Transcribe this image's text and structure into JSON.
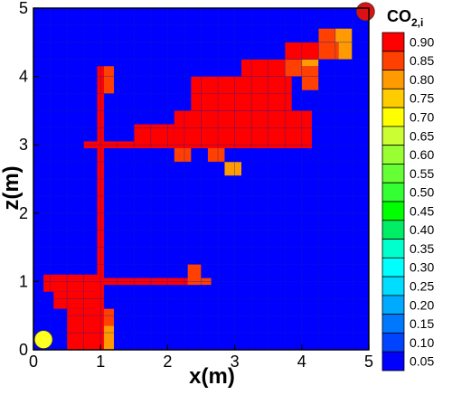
{
  "chart_data": {
    "type": "heatmap",
    "xlabel": "x(m)",
    "ylabel": "z(m)",
    "xlim": [
      0,
      5
    ],
    "ylim": [
      0,
      5
    ],
    "xticks": [
      "0",
      "1",
      "2",
      "3",
      "4",
      "5"
    ],
    "yticks": [
      "0",
      "1",
      "2",
      "3",
      "4",
      "5"
    ],
    "cell_size": 0.25,
    "background_value": 0.05,
    "grid": true,
    "legend": {
      "title_main": "CO",
      "title_sub": "2,i",
      "placement": "right",
      "levels": [
        "0.90",
        "0.85",
        "0.80",
        "0.75",
        "0.70",
        "0.65",
        "0.60",
        "0.55",
        "0.50",
        "0.45",
        "0.40",
        "0.35",
        "0.30",
        "0.25",
        "0.20",
        "0.15",
        "0.10",
        "0.05"
      ],
      "colors": [
        "#ff0000",
        "#ff4000",
        "#ff9a00",
        "#ffcc00",
        "#ffff00",
        "#ccff33",
        "#99ff33",
        "#66ff33",
        "#33ff33",
        "#00ff00",
        "#00ee66",
        "#00ffcc",
        "#00ffff",
        "#00ddff",
        "#00aaff",
        "#0077ff",
        "#0044ff",
        "#0000ff"
      ]
    },
    "cells": [
      {
        "x": 0.15,
        "z": 0.85,
        "w": 0.8,
        "h": 0.25,
        "value": 0.9
      },
      {
        "x": 0.3,
        "z": 0.6,
        "w": 0.65,
        "h": 0.25,
        "value": 0.9
      },
      {
        "x": 0.5,
        "z": 0.35,
        "w": 0.45,
        "h": 0.25,
        "value": 0.9
      },
      {
        "x": 0.5,
        "z": 0.0,
        "w": 0.45,
        "h": 0.35,
        "value": 0.9
      },
      {
        "x": 0.95,
        "z": 0.35,
        "w": 0.25,
        "h": 0.25,
        "value": 0.85
      },
      {
        "x": 0.95,
        "z": 0.0,
        "w": 0.25,
        "h": 0.35,
        "value": 0.8
      },
      {
        "x": 0.95,
        "z": 0.95,
        "w": 1.45,
        "h": 0.1,
        "value": 0.9
      },
      {
        "x": 2.3,
        "z": 0.95,
        "w": 0.2,
        "h": 0.3,
        "value": 0.85
      },
      {
        "x": 2.5,
        "z": 0.95,
        "w": 0.15,
        "h": 0.1,
        "value": 0.85
      },
      {
        "x": 0.95,
        "z": 0.0,
        "w": 0.1,
        "h": 4.15,
        "value": 0.9
      },
      {
        "x": 1.05,
        "z": 3.75,
        "w": 0.15,
        "h": 0.4,
        "value": 0.85
      },
      {
        "x": 0.75,
        "z": 2.95,
        "w": 1.4,
        "h": 0.1,
        "value": 0.9
      },
      {
        "x": 1.5,
        "z": 3.0,
        "w": 0.6,
        "h": 0.3,
        "value": 0.9
      },
      {
        "x": 2.1,
        "z": 2.95,
        "w": 2.05,
        "h": 0.55,
        "value": 0.9
      },
      {
        "x": 2.6,
        "z": 2.75,
        "w": 0.25,
        "h": 0.2,
        "value": 0.85
      },
      {
        "x": 2.85,
        "z": 2.55,
        "w": 0.25,
        "h": 0.2,
        "value": 0.8
      },
      {
        "x": 2.35,
        "z": 3.5,
        "w": 1.5,
        "h": 0.5,
        "value": 0.9
      },
      {
        "x": 3.1,
        "z": 4.0,
        "w": 0.65,
        "h": 0.25,
        "value": 0.9
      },
      {
        "x": 3.75,
        "z": 4.0,
        "w": 0.25,
        "h": 0.25,
        "value": 0.85
      },
      {
        "x": 4.0,
        "z": 3.8,
        "w": 0.25,
        "h": 0.35,
        "value": 0.85
      },
      {
        "x": 3.75,
        "z": 4.25,
        "w": 0.5,
        "h": 0.25,
        "value": 0.9
      },
      {
        "x": 4.25,
        "z": 4.25,
        "w": 0.3,
        "h": 0.25,
        "value": 0.85
      },
      {
        "x": 4.55,
        "z": 4.25,
        "w": 0.2,
        "h": 0.25,
        "value": 0.8
      },
      {
        "x": 4.25,
        "z": 4.5,
        "w": 0.25,
        "h": 0.2,
        "value": 0.85
      },
      {
        "x": 4.5,
        "z": 4.5,
        "w": 0.25,
        "h": 0.2,
        "value": 0.8
      },
      {
        "x": 2.1,
        "z": 2.75,
        "w": 0.25,
        "h": 0.2,
        "value": 0.85
      },
      {
        "x": 4.0,
        "z": 4.15,
        "w": 0.25,
        "h": 0.1,
        "value": 0.8
      }
    ],
    "markers": [
      {
        "name": "outlet",
        "x": 4.95,
        "z": 4.95,
        "color": "#dd1111"
      },
      {
        "name": "inlet",
        "x": 0.15,
        "z": 0.15,
        "color": "#ffff22"
      }
    ]
  }
}
